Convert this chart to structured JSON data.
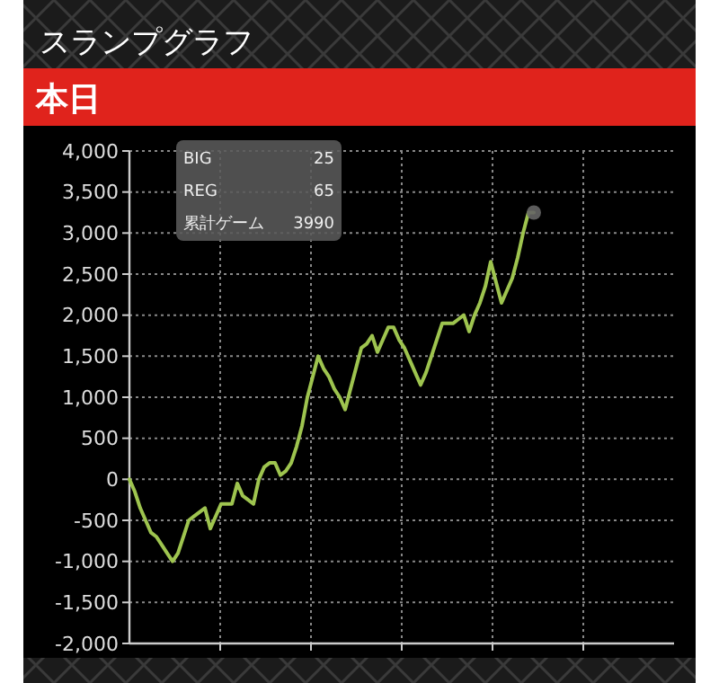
{
  "chart_data": {
    "type": "line",
    "title": "スランプグラフ",
    "subtitle": "本日",
    "annotations": [
      "BIG",
      "25",
      "REG",
      "65",
      "累計ゲーム",
      "3990"
    ],
    "categories": [
      null,
      null,
      null,
      null,
      null,
      null,
      null,
      null,
      null,
      null,
      null,
      null,
      null,
      null,
      null,
      null,
      null,
      null,
      null,
      null,
      null,
      null,
      null,
      null,
      null,
      null,
      null,
      null,
      null,
      null,
      null,
      null,
      null,
      null,
      null,
      null,
      null,
      null,
      null,
      null,
      null,
      null,
      null,
      null,
      null,
      null,
      null,
      null,
      null,
      null,
      null,
      null,
      null,
      null,
      null,
      null,
      null,
      null,
      null,
      null,
      null,
      null,
      null,
      null,
      null,
      null,
      null,
      null,
      null,
      null,
      null,
      null,
      null,
      null,
      null,
      null,
      null,
      null,
      null,
      null,
      null,
      null,
      null,
      null,
      null,
      null,
      null,
      null,
      null,
      null,
      null,
      null,
      null,
      null,
      null,
      null,
      null,
      null,
      null,
      null,
      null
    ],
    "series": [
      {
        "color": "#9ec44f",
        "values": [
          0,
          -150,
          -350,
          -500,
          -650,
          -700,
          -800,
          -900,
          -1000,
          -900,
          -700,
          -500,
          -450,
          -400,
          -350,
          -600,
          -450,
          -300,
          -300,
          -300,
          -50,
          -200,
          -250,
          -300,
          0,
          150,
          200,
          200,
          50,
          100,
          200,
          400,
          650,
          1000,
          1250,
          1500,
          1350,
          1250,
          1100,
          1000,
          850,
          1100,
          1350,
          1600,
          1650,
          1750,
          1550,
          1700,
          1850,
          1850,
          1700,
          1600,
          1450,
          1300,
          1150,
          1300,
          1500,
          1700,
          1900,
          1900,
          1900,
          1950,
          2000,
          1800,
          2000,
          2150,
          2350,
          2650,
          2400,
          2150,
          2300,
          2450,
          2700,
          3000,
          3250,
          3250,
          null,
          null,
          null,
          null,
          null,
          null,
          null,
          null,
          null,
          null,
          null,
          null,
          null,
          null,
          null,
          null,
          null,
          null,
          null,
          null,
          null,
          null,
          null,
          null,
          null
        ]
      }
    ],
    "ylim": [
      -2000,
      4000
    ],
    "yticks": [
      {
        "value": -2000,
        "label": "-2,000"
      },
      {
        "value": -1500,
        "label": "-1,500"
      },
      {
        "value": -1000,
        "label": "-1,000"
      },
      {
        "value": -500,
        "label": "-500"
      },
      0,
      500,
      {
        "value": 1000,
        "label": "1,000"
      },
      {
        "value": 1500,
        "label": "1,500"
      },
      {
        "value": 2000,
        "label": "2,000"
      },
      {
        "value": 2500,
        "label": "2,500"
      },
      {
        "value": 3000,
        "label": "3,000"
      },
      {
        "value": 3500,
        "label": "3,500"
      },
      {
        "value": 4000,
        "label": "4,000"
      }
    ],
    "grid": true,
    "tick_labels": "y"
  }
}
